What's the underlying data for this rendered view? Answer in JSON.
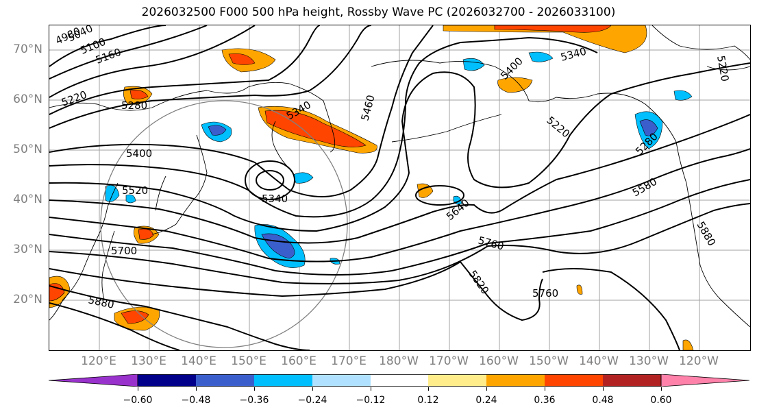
{
  "title": "2026032500 F000 500 hPa height, Rossby Wave PC (2026032700 - 2026033100)",
  "latitude_labels": [
    "70°N",
    "60°N",
    "50°N",
    "40°N",
    "30°N",
    "20°N"
  ],
  "longitude_labels": [
    "120°E",
    "130°E",
    "140°E",
    "150°E",
    "160°E",
    "170°E",
    "180°W",
    "170°W",
    "160°W",
    "150°W",
    "140°W",
    "130°W",
    "120°W"
  ],
  "contour_labels": [
    "4980",
    "5040",
    "5100",
    "5160",
    "5220",
    "5280",
    "5340",
    "5400",
    "5460",
    "5520",
    "5340",
    "5340",
    "5400",
    "5220",
    "5640",
    "5580",
    "5700",
    "5760",
    "5820",
    "5760",
    "5880",
    "5880",
    "5220",
    "5280"
  ],
  "colorbar": {
    "tick_labels": [
      "−0.60",
      "−0.48",
      "−0.36",
      "−0.24",
      "−0.12",
      "0.12",
      "0.24",
      "0.36",
      "0.48",
      "0.60"
    ],
    "colors": [
      "#9932cc",
      "#00008b",
      "#3a5fcd",
      "#00bfff",
      "#b0e2ff",
      "#ffffff",
      "#ffec8b",
      "#ffa500",
      "#ff4500",
      "#b22222",
      "#ff82ab"
    ],
    "extend": "both"
  },
  "colors": {
    "contour": "#000000",
    "grid": "#a0a0a0",
    "circle": "#808080",
    "axis_label": "#808080"
  }
}
